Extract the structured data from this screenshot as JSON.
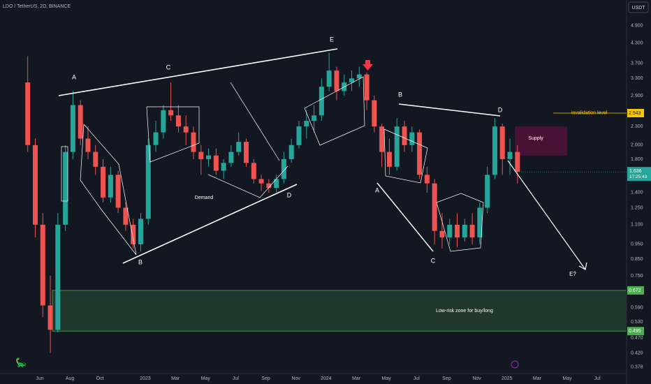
{
  "header": {
    "symbol": "LDO / TetherUS, 2D, BINANCE",
    "currency": "USDT"
  },
  "chart_data": {
    "type": "candlestick",
    "x": [
      -0.8,
      -0.3,
      0.2,
      0.7,
      1.2,
      1.7,
      2.2,
      2.7,
      3.2,
      3.7,
      4.2,
      4.7,
      5.2,
      5.7,
      6.2,
      6.7,
      7.2,
      7.7,
      8.2,
      8.7,
      9.2,
      9.7,
      10.2,
      10.7,
      11.2,
      11.7,
      12.2,
      12.7,
      13.2,
      13.7,
      14.2,
      14.7,
      15.2,
      15.7,
      16.2,
      16.7,
      17.2,
      17.7,
      18.2,
      18.7,
      19.2,
      19.7,
      20.2,
      20.7,
      21.2,
      21.7,
      22.2,
      22.7,
      23.2,
      23.7,
      24.2,
      24.7,
      25.2,
      25.7,
      26.2,
      26.7,
      27.2,
      27.7,
      28.2,
      28.7,
      29.2,
      29.7,
      30.2,
      30.7,
      31.2,
      31.7
    ],
    "open": [
      3.2,
      2.0,
      1.1,
      0.6,
      0.5,
      1.1,
      1.9,
      2.7,
      2.1,
      1.9,
      1.7,
      1.35,
      1.6,
      1.25,
      1.1,
      0.95,
      1.15,
      2.0,
      2.2,
      2.6,
      2.5,
      2.3,
      2.2,
      1.9,
      1.8,
      1.85,
      1.65,
      1.75,
      1.9,
      2.05,
      1.75,
      1.55,
      1.5,
      1.45,
      1.55,
      1.8,
      2.0,
      2.3,
      2.4,
      2.5,
      3.1,
      3.5,
      3.0,
      3.2,
      3.3,
      3.4,
      2.8,
      2.3,
      1.9,
      1.7,
      2.3,
      2.0,
      2.2,
      1.6,
      1.5,
      1.05,
      1.0,
      1.1,
      1.0,
      1.1,
      1.0,
      1.25,
      1.6,
      2.3,
      1.8,
      1.9
    ],
    "high": [
      3.9,
      2.1,
      1.2,
      0.75,
      1.2,
      2.0,
      3.0,
      2.8,
      2.3,
      2.0,
      1.8,
      1.7,
      1.65,
      1.3,
      1.15,
      1.2,
      2.1,
      2.4,
      2.7,
      3.2,
      2.7,
      2.5,
      2.3,
      2.0,
      1.95,
      1.95,
      1.8,
      2.0,
      2.2,
      2.1,
      1.8,
      1.6,
      1.55,
      1.6,
      1.9,
      2.1,
      2.4,
      2.6,
      2.7,
      3.3,
      4.0,
      3.6,
      3.4,
      3.5,
      3.6,
      3.45,
      2.9,
      2.35,
      2.1,
      2.45,
      2.4,
      2.3,
      2.25,
      1.7,
      1.55,
      1.2,
      1.15,
      1.2,
      1.15,
      1.2,
      1.3,
      1.7,
      2.45,
      2.35,
      2.1,
      2.0
    ],
    "low": [
      1.9,
      1.0,
      0.55,
      0.42,
      0.49,
      1.05,
      1.8,
      2.0,
      1.8,
      1.6,
      1.3,
      1.3,
      1.2,
      1.05,
      0.92,
      0.9,
      1.1,
      1.9,
      2.1,
      2.4,
      2.2,
      2.0,
      1.8,
      1.6,
      1.7,
      1.6,
      1.55,
      1.7,
      1.85,
      1.7,
      1.5,
      1.42,
      1.4,
      1.4,
      1.5,
      1.75,
      1.95,
      2.1,
      2.2,
      2.4,
      3.0,
      2.8,
      2.9,
      3.0,
      3.1,
      2.6,
      2.2,
      1.7,
      1.6,
      1.65,
      1.9,
      1.9,
      1.55,
      1.4,
      0.95,
      0.92,
      0.95,
      0.93,
      0.97,
      0.95,
      0.95,
      1.2,
      1.55,
      1.6,
      1.6,
      1.5
    ],
    "close": [
      2.0,
      1.1,
      0.6,
      0.5,
      1.1,
      1.9,
      2.7,
      2.1,
      1.9,
      1.7,
      1.35,
      1.6,
      1.25,
      1.1,
      0.95,
      1.15,
      2.0,
      2.2,
      2.6,
      2.5,
      2.3,
      2.2,
      1.9,
      1.8,
      1.85,
      1.65,
      1.75,
      1.9,
      2.05,
      1.75,
      1.55,
      1.5,
      1.45,
      1.55,
      1.8,
      2.0,
      2.3,
      2.4,
      2.5,
      3.1,
      3.5,
      3.0,
      3.2,
      3.3,
      3.4,
      2.8,
      2.3,
      1.9,
      1.7,
      2.3,
      2.0,
      2.2,
      1.6,
      1.5,
      1.05,
      1.0,
      1.1,
      1.0,
      1.1,
      1.0,
      1.25,
      1.6,
      2.3,
      1.8,
      1.9,
      1.636
    ],
    "up_color": "#26a69a",
    "down_color": "#ef5350",
    "log_scale": true,
    "xlim": [
      -2.64,
      38.94
    ],
    "ylim": [
      0.36,
      5.7
    ],
    "xticks": [
      {
        "value": 0,
        "label": "Jun"
      },
      {
        "value": 2,
        "label": "Aug"
      },
      {
        "value": 4,
        "label": "Oct"
      },
      {
        "value": 7,
        "label": "2023"
      },
      {
        "value": 9,
        "label": "Mar"
      },
      {
        "value": 11,
        "label": "May"
      },
      {
        "value": 13,
        "label": "Jul"
      },
      {
        "value": 15,
        "label": "Sep"
      },
      {
        "value": 17,
        "label": "Nov"
      },
      {
        "value": 19,
        "label": "2024"
      },
      {
        "value": 21,
        "label": "Mar"
      },
      {
        "value": 23,
        "label": "May"
      },
      {
        "value": 25,
        "label": "Jul"
      },
      {
        "value": 27,
        "label": "Sep"
      },
      {
        "value": 29,
        "label": "Nov"
      },
      {
        "value": 31,
        "label": "2025"
      },
      {
        "value": 33,
        "label": "Mar"
      },
      {
        "value": 35,
        "label": "May"
      },
      {
        "value": 37,
        "label": "Jul"
      }
    ],
    "yticks": [
      {
        "value": 4.9,
        "label": "4.900"
      },
      {
        "value": 4.3,
        "label": "4.300"
      },
      {
        "value": 3.7,
        "label": "3.700"
      },
      {
        "value": 3.3,
        "label": "3.300"
      },
      {
        "value": 2.9,
        "label": "2.900"
      },
      {
        "value": 2.3,
        "label": "2.300"
      },
      {
        "value": 2.0,
        "label": "2.000"
      },
      {
        "value": 1.8,
        "label": "1.800"
      },
      {
        "value": 1.4,
        "label": "1.400"
      },
      {
        "value": 1.25,
        "label": "1.250"
      },
      {
        "value": 1.1,
        "label": "1.100"
      },
      {
        "value": 0.95,
        "label": "0.950"
      },
      {
        "value": 0.85,
        "label": "0.850"
      },
      {
        "value": 0.75,
        "label": "0.750"
      },
      {
        "value": 0.59,
        "label": "0.590"
      },
      {
        "value": 0.53,
        "label": "0.530"
      },
      {
        "value": 0.47,
        "label": "0.470"
      },
      {
        "value": 0.42,
        "label": "0.420"
      },
      {
        "value": 0.378,
        "label": "0.378"
      }
    ],
    "wave_labels": [
      "A",
      "C",
      "B",
      "D",
      "E",
      "B",
      "A",
      "D",
      "C",
      "E?"
    ],
    "demand_label": "Demand",
    "supply_zone": {
      "label": "Supply",
      "low": 1.85,
      "high": 2.3
    },
    "invalidation_level": {
      "label": "invalidation level",
      "value": 2.543,
      "value_label": "2.543"
    },
    "current_price": {
      "value": 1.636,
      "value_label": "1.636",
      "countdown": "17:25:43"
    },
    "low_risk_zone": {
      "label": "Low-risk zone for buy/long",
      "low": 0.495,
      "high": 0.672,
      "low_label": "0.495",
      "high_label": "0.672"
    }
  }
}
